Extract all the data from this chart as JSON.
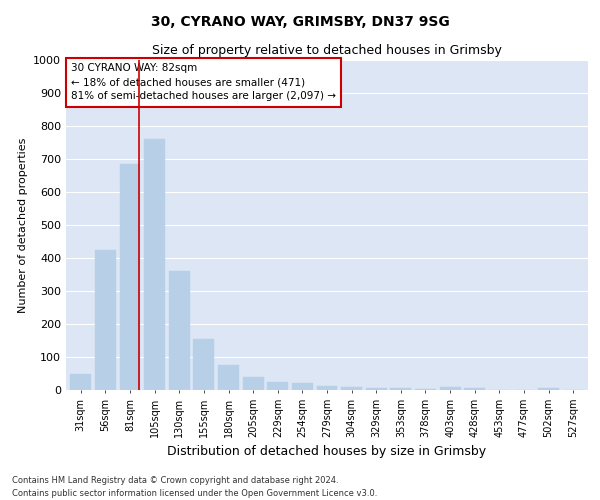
{
  "title1": "30, CYRANO WAY, GRIMSBY, DN37 9SG",
  "title2": "Size of property relative to detached houses in Grimsby",
  "xlabel": "Distribution of detached houses by size in Grimsby",
  "ylabel": "Number of detached properties",
  "categories": [
    "31sqm",
    "56sqm",
    "81sqm",
    "105sqm",
    "130sqm",
    "155sqm",
    "180sqm",
    "205sqm",
    "229sqm",
    "254sqm",
    "279sqm",
    "304sqm",
    "329sqm",
    "353sqm",
    "378sqm",
    "403sqm",
    "428sqm",
    "453sqm",
    "477sqm",
    "502sqm",
    "527sqm"
  ],
  "values": [
    50,
    425,
    685,
    760,
    360,
    155,
    75,
    38,
    25,
    20,
    13,
    8,
    6,
    5,
    4,
    8,
    5,
    0,
    0,
    5,
    0
  ],
  "bar_color": "#b8cfe8",
  "bar_edge_color": "#b8cfe8",
  "background_color": "#dce6f5",
  "grid_color": "#ffffff",
  "annotation_box_text": "30 CYRANO WAY: 82sqm\n← 18% of detached houses are smaller (471)\n81% of semi-detached houses are larger (2,097) →",
  "annotation_box_color": "#cc0000",
  "vline_x_index": 2,
  "vline_color": "#cc0000",
  "ylim": [
    0,
    1000
  ],
  "yticks": [
    0,
    100,
    200,
    300,
    400,
    500,
    600,
    700,
    800,
    900,
    1000
  ],
  "footnote1": "Contains HM Land Registry data © Crown copyright and database right 2024.",
  "footnote2": "Contains public sector information licensed under the Open Government Licence v3.0."
}
